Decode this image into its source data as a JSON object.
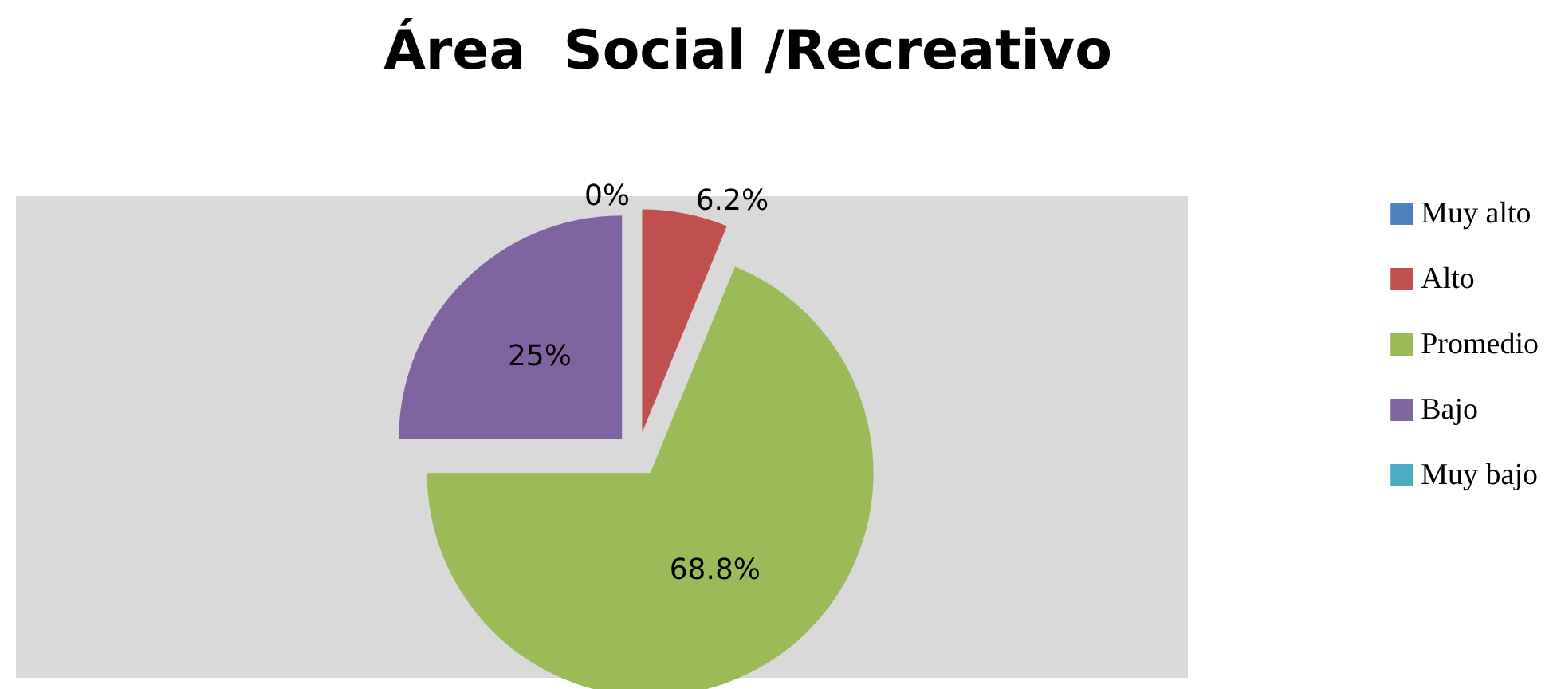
{
  "chart_data": {
    "type": "pie",
    "title": "Área  Social /Recreativo",
    "categories": [
      "Muy alto",
      "Alto",
      "Promedio",
      "Bajo",
      "Muy bajo"
    ],
    "values": [
      0,
      6.2,
      68.8,
      25,
      0
    ],
    "value_labels": [
      "0%",
      "6.2%",
      "68.8%",
      "25%",
      null
    ],
    "colors": [
      "#4f81bd",
      "#c0504d",
      "#9bbb59",
      "#8064a2",
      "#4bacc6"
    ],
    "legend": "right"
  }
}
